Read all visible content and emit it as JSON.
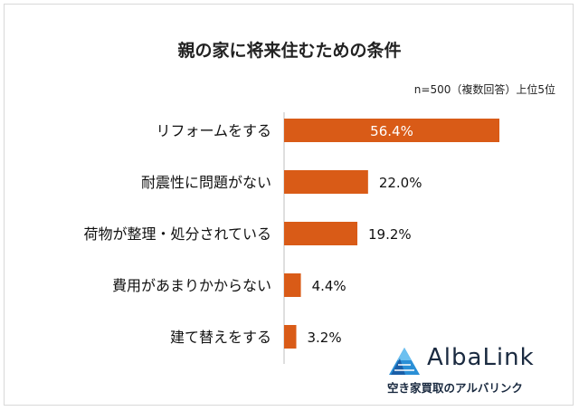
{
  "chart_data": {
    "type": "bar",
    "orientation": "horizontal",
    "title": "親の家に将来住むための条件",
    "note": "n=500（複数回答）上位5位",
    "categories": [
      "リフォームをする",
      "耐震性に問題がない",
      "荷物が整理・処分されている",
      "費用があまりかからない",
      "建て替えをする"
    ],
    "values": [
      56.4,
      22.0,
      19.2,
      4.4,
      3.2
    ],
    "value_labels": [
      "56.4%",
      "22.0%",
      "19.2%",
      "4.4%",
      "3.2%"
    ],
    "xlim": [
      0,
      60
    ],
    "bar_color": "#d95b17",
    "grid": false
  },
  "brand": {
    "name": "AlbaLink",
    "tagline": "空き家買取のアルバリンク",
    "color": "#1a2a40",
    "icon": "albalink-triangle-logo-icon"
  }
}
